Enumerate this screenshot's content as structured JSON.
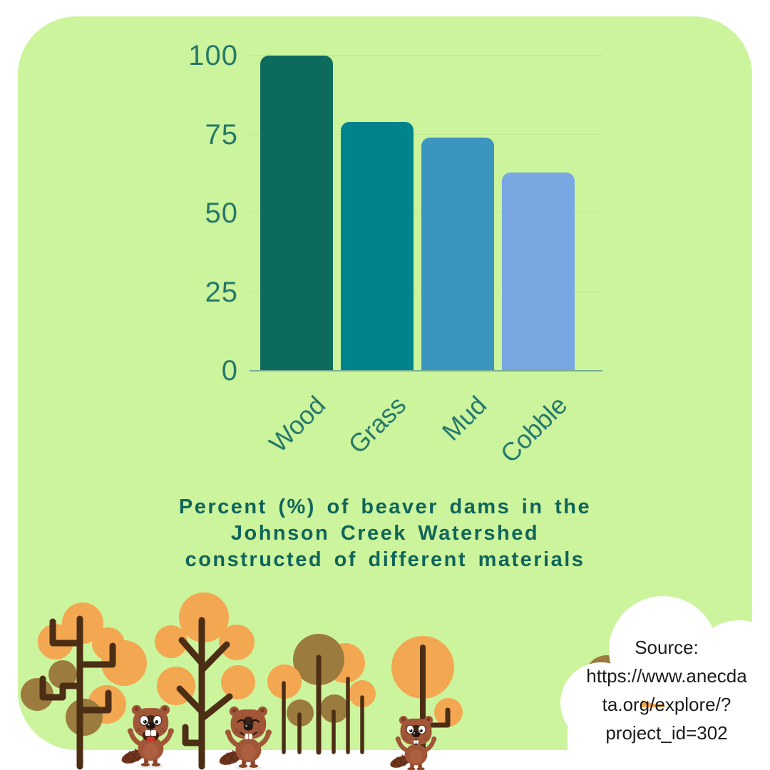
{
  "chart_data": {
    "type": "bar",
    "categories": [
      "Wood",
      "Grass",
      "Mud",
      "Cobble"
    ],
    "values": [
      100,
      79,
      74,
      63
    ],
    "bar_colors": [
      "#0c6b5d",
      "#00838a",
      "#3c95bf",
      "#78a7e2"
    ],
    "yticks": [
      0,
      25,
      50,
      75,
      100
    ],
    "ylim": [
      0,
      100
    ],
    "title": "Percent (%) of beaver dams in the Johnson Creek Watershed constructed of different materials",
    "xlabel": "",
    "ylabel": "",
    "grid": "horizontal",
    "legend": "none"
  },
  "title": {
    "lines": [
      "Percent (%) of beaver dams in the",
      "Johnson Creek Watershed",
      "constructed of different materials"
    ]
  },
  "source_cloud": {
    "lines": [
      "Source:",
      "https://www.anecda",
      "ta.org/explore/?",
      "project_id=302"
    ]
  },
  "colors": {
    "panel": "#ccf49d",
    "grid": "#bde794",
    "axisline": "#74ad92",
    "teal": "#26796b",
    "title": "#10655a",
    "cloudtext": "#1b1b19",
    "trunk": "#4c2e15",
    "orange": "#f3a751",
    "brownleaf": "#9b7b3e",
    "beaver": "#a05637",
    "cloud": "#ffffff"
  }
}
